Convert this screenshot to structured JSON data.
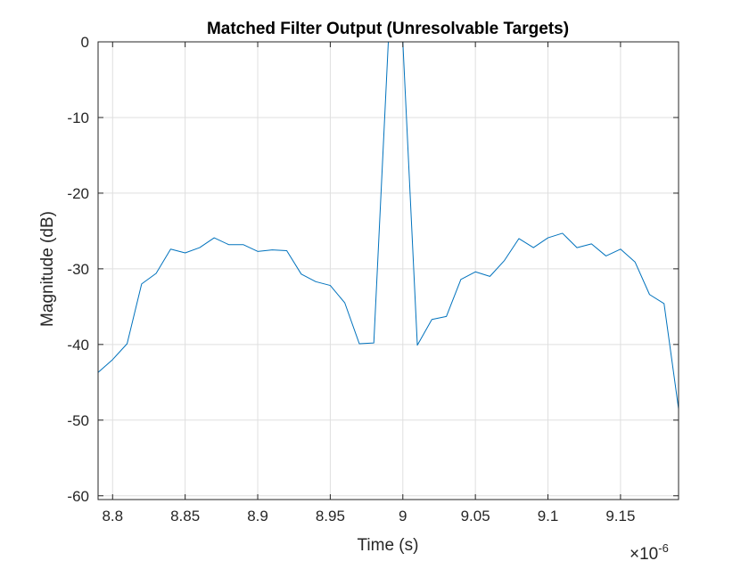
{
  "chart_data": {
    "type": "line",
    "title": "Matched Filter Output (Unresolvable Targets)",
    "xlabel": "Time (s)",
    "ylabel": "Magnitude (dB)",
    "x_exponent_label": "×10",
    "x_exponent_power": "-6",
    "xlim": [
      8.79,
      9.19
    ],
    "ylim": [
      -60.5,
      0
    ],
    "xticks": [
      8.8,
      8.85,
      8.9,
      8.95,
      9.0,
      9.05,
      9.1,
      9.15
    ],
    "xtick_labels": [
      "8.8",
      "8.85",
      "8.9",
      "8.95",
      "9",
      "9.05",
      "9.1",
      "9.15"
    ],
    "yticks": [
      0,
      -10,
      -20,
      -30,
      -40,
      -50,
      -60
    ],
    "ytick_labels": [
      "0",
      "-10",
      "-20",
      "-30",
      "-40",
      "-50",
      "-60"
    ],
    "grid": true,
    "series": [
      {
        "color": "#0072BD",
        "x": [
          8.79,
          8.8,
          8.81,
          8.82,
          8.83,
          8.84,
          8.85,
          8.86,
          8.87,
          8.88,
          8.89,
          8.9,
          8.91,
          8.92,
          8.93,
          8.94,
          8.95,
          8.96,
          8.97,
          8.98,
          8.99,
          9.0,
          9.01,
          9.02,
          9.03,
          9.04,
          9.05,
          9.06,
          9.07,
          9.08,
          9.09,
          9.1,
          9.11,
          9.12,
          9.13,
          9.14,
          9.15,
          9.16,
          9.17,
          9.18,
          9.19
        ],
        "y": [
          -43.7,
          -42.0,
          -39.9,
          -32.0,
          -30.6,
          -27.4,
          -27.9,
          -27.2,
          -25.9,
          -26.8,
          -26.8,
          -27.7,
          -27.5,
          -27.6,
          -30.7,
          -31.7,
          -32.2,
          -34.5,
          -39.9,
          -39.8,
          0,
          0,
          -40.1,
          -36.7,
          -36.3,
          -31.4,
          -30.4,
          -31.0,
          -28.9,
          -26.0,
          -27.2,
          -25.9,
          -25.3,
          -27.2,
          -26.7,
          -28.3,
          -27.4,
          -29.1,
          -33.4,
          -34.6,
          -48.5
        ]
      }
    ]
  }
}
